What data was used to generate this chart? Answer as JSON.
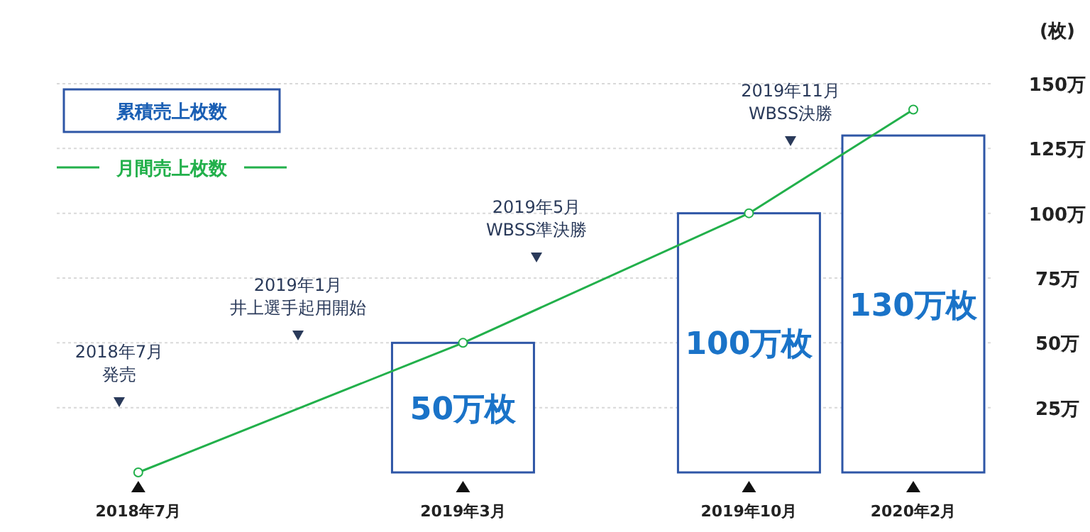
{
  "chart_data": {
    "type": "bar",
    "ylabel": "(枚)",
    "xlim": [
      "2018-05",
      "2020-04"
    ],
    "xticks": [
      {
        "value": "2018-07",
        "label": "2018年7月"
      },
      {
        "value": "2019-03",
        "label": "2019年3月"
      },
      {
        "value": "2019-10",
        "label": "2019年10月"
      },
      {
        "value": "2020-02",
        "label": "2020年2月"
      }
    ],
    "ylim": [
      0,
      150
    ],
    "yticks": [
      {
        "value": 25,
        "label": "25万"
      },
      {
        "value": 50,
        "label": "50万"
      },
      {
        "value": 75,
        "label": "75万"
      },
      {
        "value": 100,
        "label": "100万"
      },
      {
        "value": 125,
        "label": "125万"
      },
      {
        "value": 150,
        "label": "150万"
      }
    ],
    "grid": "y",
    "legend": "top left",
    "series": [
      {
        "name": "累積売上枚数",
        "color": "#2e56a6",
        "x": [
          "2019-03",
          "2019-10",
          "2020-02"
        ],
        "values": [
          50,
          100,
          130
        ],
        "value_labels": [
          "50万枚",
          "100万枚",
          "130万枚"
        ]
      },
      {
        "name": "月間売上枚数",
        "type": "line",
        "color": "#22b04b",
        "marker": "circle",
        "x": [
          "2018-07",
          "2019-03",
          "2019-10",
          "2020-02"
        ],
        "values": [
          0,
          50,
          100,
          140
        ]
      }
    ],
    "annotations": [
      "2018年7月",
      "発売",
      "2019年1月",
      "井上選手起用開始",
      "2019年5月",
      "WBSS準決勝",
      "2019年11月",
      "WBSS決勝"
    ]
  }
}
